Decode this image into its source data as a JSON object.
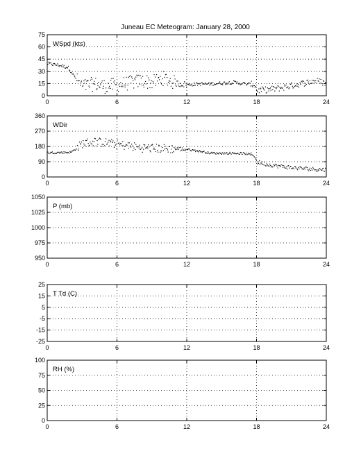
{
  "title": "Juneau EC Meteogram:   January 28, 2000",
  "chart_data": [
    {
      "type": "scatter",
      "panel_label": "WSpd (kts)",
      "xlim": [
        0,
        24
      ],
      "ylim": [
        0,
        75
      ],
      "xticks": [
        "0",
        "6",
        "12",
        "18",
        "24"
      ],
      "yticks": [
        "75",
        "60",
        "45",
        "30",
        "15",
        "0"
      ],
      "grid": true,
      "segments": [
        {
          "x": [
            0,
            1,
            1.8,
            2.5,
            3,
            4,
            5,
            6,
            7,
            8,
            9,
            10,
            11,
            12,
            13,
            14,
            15,
            16,
            17,
            17.8,
            18,
            19,
            20,
            21,
            22,
            23,
            24
          ],
          "y": [
            40,
            38,
            35,
            20,
            12,
            15,
            12,
            14,
            16,
            19,
            17,
            22,
            16,
            14,
            15,
            15,
            16,
            17,
            15,
            14,
            7,
            8,
            10,
            13,
            16,
            19,
            16
          ]
        }
      ],
      "spread": 4
    },
    {
      "type": "scatter",
      "panel_label": "WDir",
      "xlim": [
        0,
        24
      ],
      "ylim": [
        0,
        360
      ],
      "xticks": [
        "0",
        "6",
        "12",
        "18",
        "24"
      ],
      "yticks": [
        "360",
        "270",
        "180",
        "90",
        "0"
      ],
      "grid": true,
      "segments": [
        {
          "x": [
            0,
            1,
            2,
            2.6,
            3,
            4,
            5,
            6,
            7,
            8,
            9,
            10,
            11,
            12,
            13,
            14,
            15,
            16,
            17,
            17.8,
            18,
            19,
            20,
            21,
            22,
            23,
            24
          ],
          "y": [
            145,
            146,
            148,
            175,
            200,
            210,
            205,
            195,
            185,
            175,
            172,
            170,
            168,
            165,
            155,
            143,
            142,
            143,
            140,
            130,
            90,
            75,
            65,
            58,
            52,
            48,
            45
          ]
        }
      ],
      "spread": 12
    },
    {
      "type": "scatter",
      "panel_label": "P (mb)",
      "xlim": [
        0,
        24
      ],
      "ylim": [
        950,
        1050
      ],
      "xticks": [
        "0",
        "6",
        "12",
        "18",
        "24"
      ],
      "yticks": [
        "1050",
        "1025",
        "1000",
        "975",
        "950"
      ],
      "grid": true,
      "segments": []
    },
    {
      "type": "scatter",
      "panel_label": "T Td (C)",
      "xlim": [
        0,
        24
      ],
      "ylim": [
        -25,
        25
      ],
      "xticks": [
        "0",
        "6",
        "12",
        "18",
        "24"
      ],
      "yticks": [
        "25",
        "15",
        "5",
        "-5",
        "-15",
        "-25"
      ],
      "grid": true,
      "segments": []
    },
    {
      "type": "scatter",
      "panel_label": "RH (%)",
      "xlim": [
        0,
        24
      ],
      "ylim": [
        0,
        100
      ],
      "xticks": [
        "0",
        "6",
        "12",
        "18",
        "24"
      ],
      "yticks": [
        "100",
        "75",
        "50",
        "25",
        "0"
      ],
      "grid": true,
      "segments": []
    }
  ]
}
